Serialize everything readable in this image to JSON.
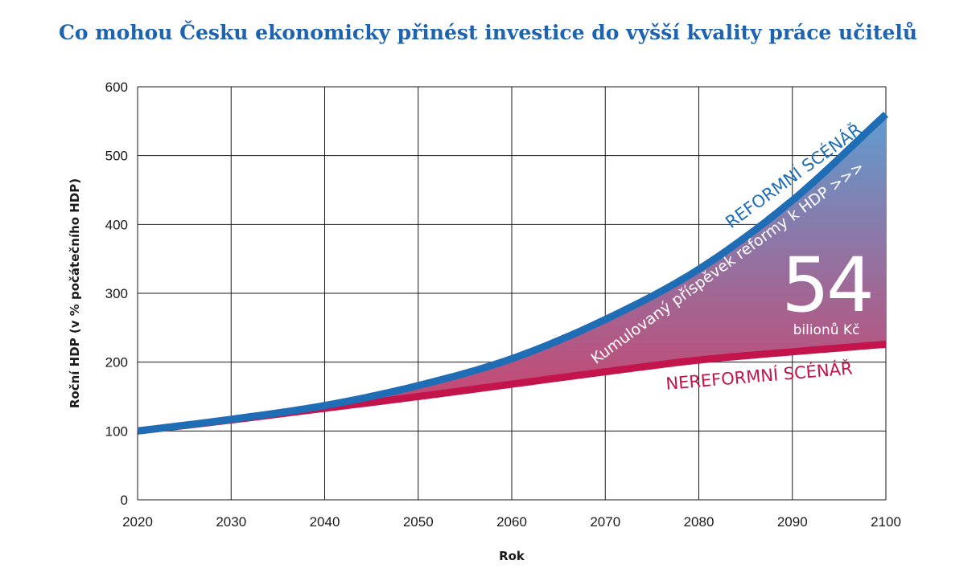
{
  "colors": {
    "reform": "#1f6db5",
    "nonreform": "#c4144c",
    "grid": "#1a1a1a",
    "area_top": "#5f9cd0",
    "area_bottom": "#d23f68"
  },
  "chart_data": {
    "type": "line",
    "title": "Co mohou Česku ekonomicky přinést investice do vyšší kvality práce učitelů",
    "xlabel": "Rok",
    "ylabel": "Roční HDP (v % počátečního HDP)",
    "xlim": [
      2020,
      2100
    ],
    "ylim": [
      0,
      600
    ],
    "xticks": [
      "2020",
      "2030",
      "2040",
      "2050",
      "2060",
      "2070",
      "2080",
      "2090",
      "2100"
    ],
    "yticks": [
      "0",
      "100",
      "200",
      "300",
      "400",
      "500",
      "600"
    ],
    "grid": true,
    "x": [
      2020,
      2030,
      2040,
      2050,
      2060,
      2070,
      2080,
      2090,
      2100
    ],
    "series": [
      {
        "name": "REFORMNÍ SCÉNÁŘ",
        "values": [
          100,
          117,
          137,
          166,
          205,
          262,
          335,
          435,
          560
        ]
      },
      {
        "name": "NEREFORMNÍ SCÉNÁŘ",
        "values": [
          100,
          116,
          133,
          150,
          168,
          186,
          203,
          215,
          226
        ]
      }
    ],
    "annotations": {
      "area_label": "Kumulovaný příspěvek reformy k HDP >>>",
      "value": "54",
      "unit": "bilionů Kč"
    }
  }
}
